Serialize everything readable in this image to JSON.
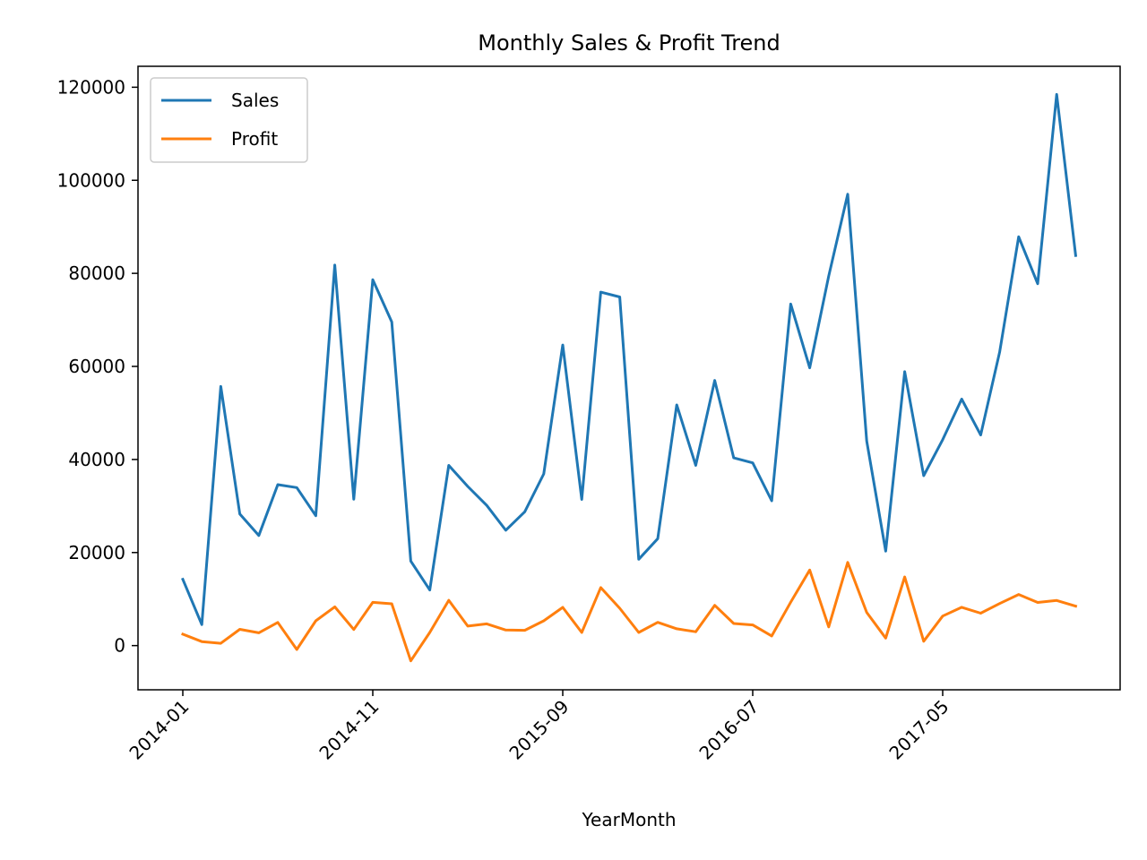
{
  "chart_data": {
    "type": "line",
    "title": "Monthly Sales & Profit Trend",
    "xlabel": "YearMonth",
    "ylabel": "",
    "ylim": [
      -9500,
      124500
    ],
    "yticks": [
      0,
      20000,
      40000,
      60000,
      80000,
      100000,
      120000
    ],
    "xticks": [
      "2014-01",
      "2014-11",
      "2015-09",
      "2016-07",
      "2017-05"
    ],
    "legend_position": "upper-left",
    "grid": false,
    "x": [
      "2014-01",
      "2014-02",
      "2014-03",
      "2014-04",
      "2014-05",
      "2014-06",
      "2014-07",
      "2014-08",
      "2014-09",
      "2014-10",
      "2014-11",
      "2014-12",
      "2015-01",
      "2015-02",
      "2015-03",
      "2015-04",
      "2015-05",
      "2015-06",
      "2015-07",
      "2015-08",
      "2015-09",
      "2015-10",
      "2015-11",
      "2015-12",
      "2016-01",
      "2016-02",
      "2016-03",
      "2016-04",
      "2016-05",
      "2016-06",
      "2016-07",
      "2016-08",
      "2016-09",
      "2016-10",
      "2016-11",
      "2016-12",
      "2017-01",
      "2017-02",
      "2017-03",
      "2017-04",
      "2017-05",
      "2017-06",
      "2017-07",
      "2017-08",
      "2017-09",
      "2017-10",
      "2017-11",
      "2017-12"
    ],
    "series": [
      {
        "name": "Sales",
        "color": "#1f77b4",
        "values": [
          14237,
          4520,
          55691,
          28295,
          23648,
          34595,
          33946,
          27909,
          81777,
          31453,
          78629,
          69546,
          18174,
          11951,
          38726,
          34195,
          30132,
          24797,
          28765,
          36898,
          64596,
          31404,
          75973,
          74920,
          18542,
          22979,
          51716,
          38750,
          56988,
          40344,
          39262,
          31115,
          73410,
          59688,
          79412,
          96999,
          43971,
          20301,
          58872,
          36522,
          44261,
          52982,
          45264,
          63121,
          87867,
          77777,
          118448,
          83829
        ]
      },
      {
        "name": "Profit",
        "color": "#ff7f0e",
        "values": [
          2450,
          862,
          499,
          3488,
          2738,
          4976,
          -841,
          5318,
          8329,
          3448,
          9292,
          8984,
          -3281,
          2814,
          9732,
          4187,
          4668,
          3335,
          3289,
          5317,
          8209,
          2817,
          12474,
          8016,
          2824,
          5005,
          3611,
          2977,
          8662,
          4750,
          4432,
          2062,
          9328,
          16243,
          4011,
          17885,
          7140,
          1613,
          14752,
          933,
          6342,
          8223,
          6953,
          9041,
          10991,
          9275,
          9690,
          8483
        ]
      }
    ]
  }
}
